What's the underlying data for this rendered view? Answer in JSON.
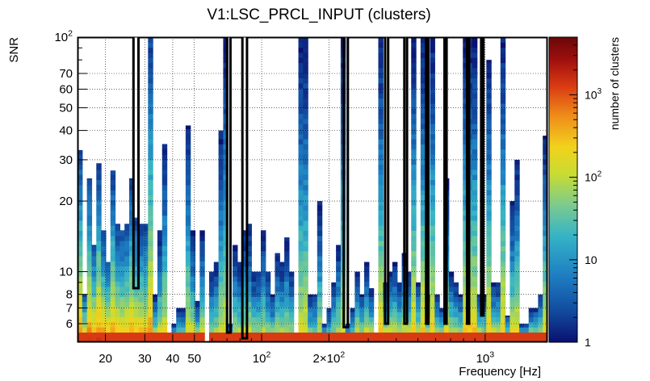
{
  "chart_data": {
    "type": "heatmap",
    "title": "V1:LSC_PRCL_INPUT (clusters)",
    "xlabel": "Frequency [Hz]",
    "ylabel": "SNR",
    "zlabel": "number of clusters",
    "x_scale": "log",
    "y_scale": "log",
    "z_scale": "log",
    "xlim": [
      15,
      1900
    ],
    "ylim": [
      5,
      100
    ],
    "zlim": [
      1,
      5000
    ],
    "x_ticks": [
      {
        "value": 20,
        "label": "20"
      },
      {
        "value": 30,
        "label": "30"
      },
      {
        "value": 40,
        "label": "40"
      },
      {
        "value": 50,
        "label": "50"
      },
      {
        "value": 100,
        "label": "10",
        "sup": "2"
      },
      {
        "value": 200,
        "label": "2×10",
        "sup": "2"
      },
      {
        "value": 1000,
        "label": "10",
        "sup": "3"
      }
    ],
    "y_ticks": [
      {
        "value": 6,
        "label": "6"
      },
      {
        "value": 7,
        "label": "7"
      },
      {
        "value": 8,
        "label": "8"
      },
      {
        "value": 10,
        "label": "10"
      },
      {
        "value": 20,
        "label": "20"
      },
      {
        "value": 30,
        "label": "30"
      },
      {
        "value": 40,
        "label": "40"
      },
      {
        "value": 50,
        "label": "50"
      },
      {
        "value": 60,
        "label": "60"
      },
      {
        "value": 70,
        "label": "70"
      },
      {
        "value": 100,
        "label": "10",
        "sup": "2"
      }
    ],
    "z_ticks": [
      {
        "value": 1,
        "label": "1"
      },
      {
        "value": 10,
        "label": "10"
      },
      {
        "value": 100,
        "label": "10",
        "sup": "2"
      },
      {
        "value": 1000,
        "label": "10",
        "sup": "3"
      }
    ],
    "grid": true,
    "colormap": [
      "#0a1070",
      "#124a9e",
      "#1e7fc2",
      "#36b4c6",
      "#7ccb8e",
      "#c7dc33",
      "#f2d21c",
      "#ef8e1a",
      "#d93a12",
      "#9c0e0e",
      "#6a0808"
    ],
    "outline_color": "#000000",
    "n_freq_bins": 100,
    "snr_min": 5,
    "max_snr_per_bin": [
      33,
      8,
      25,
      13,
      29,
      15,
      11,
      27,
      16,
      15,
      16,
      25,
      17,
      16,
      16,
      100,
      8,
      15,
      35,
      5.5,
      6,
      7,
      7,
      42,
      15,
      7.5,
      15,
      5,
      10,
      11,
      40,
      100,
      6,
      13,
      11,
      15,
      16,
      10,
      10,
      15,
      10,
      8,
      12,
      11,
      14,
      10,
      5.5,
      100,
      100,
      8,
      8,
      20,
      6,
      7,
      9,
      13,
      100,
      6,
      7,
      10,
      8,
      11,
      8.5,
      5.5,
      100,
      9,
      10,
      11,
      9,
      12,
      10,
      100,
      9,
      100,
      8,
      100,
      8,
      7,
      25,
      10,
      9,
      8,
      100,
      100,
      100,
      8,
      8,
      80,
      9,
      9,
      100,
      6.5,
      20,
      30,
      6,
      6,
      7,
      7,
      8,
      38
    ],
    "outline_polygon_hz_snr": [
      [
        15,
        100
      ],
      [
        26.7,
        100
      ],
      [
        26.7,
        8.5
      ],
      [
        28.1,
        8.5
      ],
      [
        28.1,
        100
      ],
      [
        70.0,
        100
      ],
      [
        70.0,
        5.5
      ],
      [
        72.5,
        5.5
      ],
      [
        72.5,
        100
      ],
      [
        82.0,
        100
      ],
      [
        82.0,
        5.2
      ],
      [
        86.0,
        5.2
      ],
      [
        86.0,
        100
      ],
      [
        233,
        100
      ],
      [
        233,
        5.8
      ],
      [
        243,
        5.8
      ],
      [
        243,
        100
      ],
      [
        357,
        100
      ],
      [
        357,
        6.0
      ],
      [
        368,
        6.0
      ],
      [
        368,
        100
      ],
      [
        435,
        100
      ],
      [
        435,
        6.0
      ],
      [
        447,
        6.0
      ],
      [
        447,
        100
      ],
      [
        544,
        100
      ],
      [
        544,
        6.0
      ],
      [
        557,
        6.0
      ],
      [
        557,
        100
      ],
      [
        658,
        100
      ],
      [
        658,
        6.0
      ],
      [
        672,
        6.0
      ],
      [
        672,
        100
      ],
      [
        830,
        100
      ],
      [
        830,
        6.0
      ],
      [
        848,
        6.0
      ],
      [
        848,
        100
      ],
      [
        960,
        100
      ],
      [
        960,
        6.5
      ],
      [
        982,
        6.5
      ],
      [
        982,
        100
      ],
      [
        1900,
        100
      ],
      [
        1900,
        5
      ],
      [
        15,
        5
      ]
    ]
  }
}
